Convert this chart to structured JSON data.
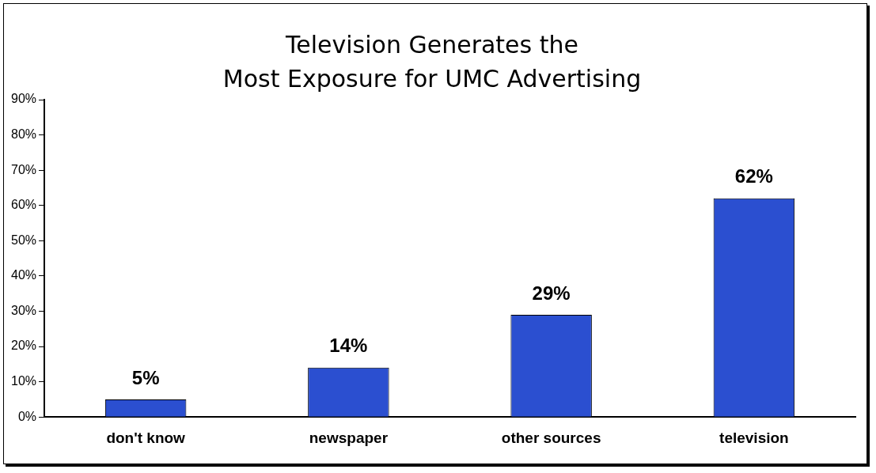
{
  "chart_data": {
    "type": "bar",
    "title": "Television Generates the Most Exposure for UMC Advertising",
    "categories": [
      "don't know",
      "newspaper",
      "other sources",
      "television"
    ],
    "values": [
      5,
      14,
      29,
      62
    ],
    "color": "#2b4fd0",
    "ylim": [
      0,
      90
    ],
    "yticks": [
      {
        "value": 0,
        "label": "0%"
      },
      {
        "value": 10,
        "label": "10%"
      },
      {
        "value": 20,
        "label": "20%"
      },
      {
        "value": 30,
        "label": "30%"
      },
      {
        "value": 40,
        "label": "40%"
      },
      {
        "value": 50,
        "label": "50%"
      },
      {
        "value": 60,
        "label": "60%"
      },
      {
        "value": 70,
        "label": "70%"
      },
      {
        "value": 80,
        "label": "80%"
      },
      {
        "value": 90,
        "label": "90%"
      }
    ],
    "value_labels": [
      "5%",
      "14%",
      "29%",
      "62%"
    ],
    "grid": false,
    "legend": false
  }
}
